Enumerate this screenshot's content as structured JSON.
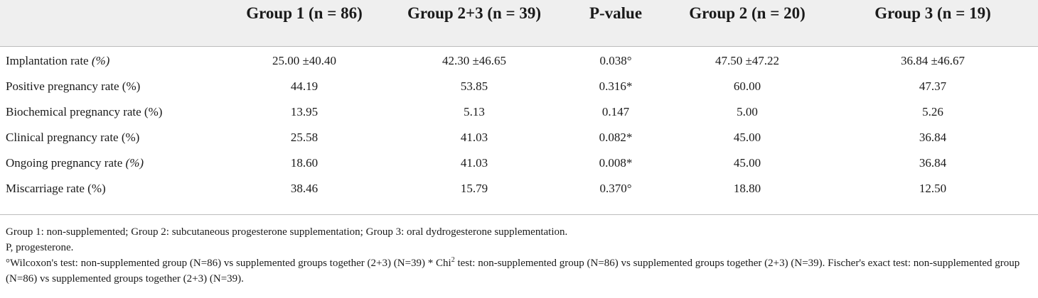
{
  "table": {
    "columns": [
      "",
      "Group 1 (n = 86)",
      "Group 2+3 (n = 39)",
      "P-value",
      "Group 2 (n = 20)",
      "Group 3 (n = 19)"
    ],
    "rows": [
      {
        "label_main": "Implantation rate ",
        "label_italic": "(%)",
        "values": [
          "25.00 ±40.40",
          "42.30 ±46.65",
          "0.038°",
          "47.50 ±47.22",
          "36.84 ±46.67"
        ]
      },
      {
        "label_main": "Positive pregnancy rate (%)",
        "label_italic": "",
        "values": [
          "44.19",
          "53.85",
          "0.316*",
          "60.00",
          "47.37"
        ]
      },
      {
        "label_main": "Biochemical pregnancy rate (%)",
        "label_italic": "",
        "values": [
          "13.95",
          "5.13",
          "0.147",
          "5.00",
          "5.26"
        ]
      },
      {
        "label_main": "Clinical pregnancy rate (%)",
        "label_italic": "",
        "values": [
          "25.58",
          "41.03",
          "0.082*",
          "45.00",
          "36.84"
        ]
      },
      {
        "label_main": "Ongoing pregnancy rate ",
        "label_italic": "(%)",
        "values": [
          "18.60",
          "41.03",
          "0.008*",
          "45.00",
          "36.84"
        ]
      },
      {
        "label_main": "Miscarriage rate (%)",
        "label_italic": "",
        "values": [
          "38.46",
          "15.79",
          "0.370°",
          "18.80",
          "12.50"
        ]
      }
    ]
  },
  "notes": {
    "groups": "Group 1: non-supplemented; Group 2: subcutaneous progesterone supplementation; Group 3: oral dydrogesterone supplementation.",
    "abbreviation": "P, progesterone.",
    "tests_part1": "°Wilcoxon's test: non-supplemented group (N=86) vs supplemented groups together (2+3) (N=39) * Chi",
    "tests_superscript": "2",
    "tests_part2": " test: non-supplemented group (N=86) vs supplemented groups together (2+3) (N=39). Fischer's exact test: non-supplemented group (N=86) vs supplemented groups together (2+3) (N=39)."
  }
}
